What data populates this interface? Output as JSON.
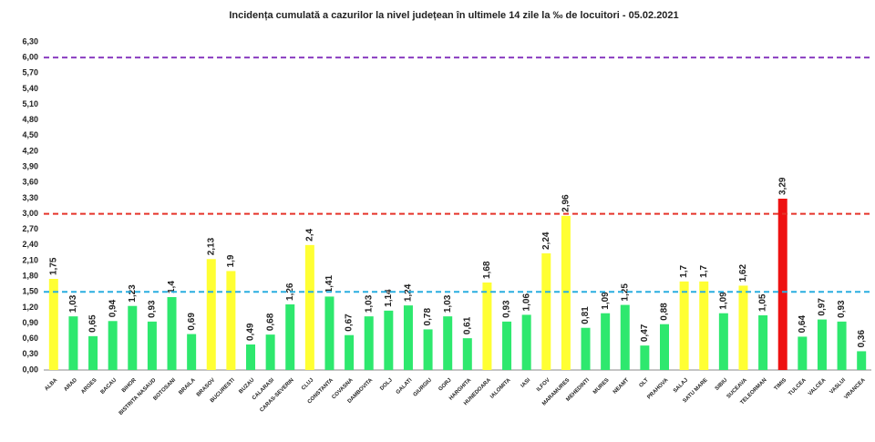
{
  "chart_data": {
    "type": "bar",
    "title": "Incidența cumulată a cazurilor la nivel județean în ultimele 14 zile   la ‰ de locuitori  - 05.02.2021",
    "categories": [
      "ALBA",
      "ARAD",
      "ARGES",
      "BACAU",
      "BIHOR",
      "BISTRITA NASAUD",
      "BOTOSANI",
      "BRAILA",
      "BRASOV",
      "BUCURESTI",
      "BUZAU",
      "CALARASI",
      "CARAS-SEVERIN",
      "CLUJ",
      "CONSTANTA",
      "COVASNA",
      "DAMBOVITA",
      "DOLJ",
      "GALATI",
      "GIURGIU",
      "GORJ",
      "HARGHITA",
      "HUNEDOARA",
      "IALOMITA",
      "IASI",
      "ILFOV",
      "MARAMURES",
      "MEHEDINTI",
      "MURES",
      "NEAMT",
      "OLT",
      "PRAHOVA",
      "SALAJ",
      "SATU MARE",
      "SIBIU",
      "SUCEAVA",
      "TELEORMAN",
      "TIMIS",
      "TULCEA",
      "VALCEA",
      "VASLUI",
      "VRANCEA"
    ],
    "values": [
      1.75,
      1.03,
      0.65,
      0.94,
      1.23,
      0.93,
      1.4,
      0.69,
      2.13,
      1.9,
      0.49,
      0.68,
      1.26,
      2.4,
      1.41,
      0.67,
      1.03,
      1.14,
      1.24,
      0.78,
      1.03,
      0.61,
      1.68,
      0.93,
      1.06,
      2.24,
      2.96,
      0.81,
      1.09,
      1.25,
      0.47,
      0.88,
      1.7,
      1.7,
      1.09,
      1.62,
      1.05,
      3.29,
      0.64,
      0.97,
      0.93,
      0.36
    ],
    "value_labels": [
      "1,75",
      "1,03",
      "0,65",
      "0,94",
      "1,23",
      "0,93",
      "1,4",
      "0,69",
      "2,13",
      "1,9",
      "0,49",
      "0,68",
      "1,26",
      "2,4",
      "1,41",
      "0,67",
      "1,03",
      "1,14",
      "1,24",
      "0,78",
      "1,03",
      "0,61",
      "1,68",
      "0,93",
      "1,06",
      "2,24",
      "2,96",
      "0,81",
      "1,09",
      "1,25",
      "0,47",
      "0,88",
      "1,7",
      "1,7",
      "1,09",
      "1,62",
      "1,05",
      "3,29",
      "0,64",
      "0,97",
      "0,93",
      "0,36"
    ],
    "colors": [
      "#ffff33",
      "#2ee86e",
      "#2ee86e",
      "#2ee86e",
      "#2ee86e",
      "#2ee86e",
      "#2ee86e",
      "#2ee86e",
      "#ffff33",
      "#ffff33",
      "#2ee86e",
      "#2ee86e",
      "#2ee86e",
      "#ffff33",
      "#2ee86e",
      "#2ee86e",
      "#2ee86e",
      "#2ee86e",
      "#2ee86e",
      "#2ee86e",
      "#2ee86e",
      "#2ee86e",
      "#ffff33",
      "#2ee86e",
      "#2ee86e",
      "#ffff33",
      "#ffff33",
      "#2ee86e",
      "#2ee86e",
      "#2ee86e",
      "#2ee86e",
      "#2ee86e",
      "#ffff33",
      "#ffff33",
      "#2ee86e",
      "#ffff33",
      "#2ee86e",
      "#ee1111",
      "#2ee86e",
      "#2ee86e",
      "#2ee86e",
      "#2ee86e"
    ],
    "ylim": [
      0,
      6.3
    ],
    "yticks": [
      {
        "value": 0,
        "label": "0,00"
      },
      {
        "value": 0.3,
        "label": "0,30"
      },
      {
        "value": 0.6,
        "label": "0,60"
      },
      {
        "value": 0.9,
        "label": "0,90"
      },
      {
        "value": 1.2,
        "label": "1,20"
      },
      {
        "value": 1.5,
        "label": "1,50"
      },
      {
        "value": 1.8,
        "label": "1,80"
      },
      {
        "value": 2.1,
        "label": "2,10"
      },
      {
        "value": 2.4,
        "label": "2,40"
      },
      {
        "value": 2.7,
        "label": "2,70"
      },
      {
        "value": 3,
        "label": "3,00"
      },
      {
        "value": 3.3,
        "label": "3,30"
      },
      {
        "value": 3.6,
        "label": "3,60"
      },
      {
        "value": 3.9,
        "label": "3,90"
      },
      {
        "value": 4.2,
        "label": "4,20"
      },
      {
        "value": 4.5,
        "label": "4,50"
      },
      {
        "value": 4.8,
        "label": "4,80"
      },
      {
        "value": 5.1,
        "label": "5,10"
      },
      {
        "value": 5.4,
        "label": "5,40"
      },
      {
        "value": 5.7,
        "label": "5,70"
      },
      {
        "value": 6,
        "label": "6,00"
      },
      {
        "value": 6.3,
        "label": "6,30"
      }
    ],
    "reference_lines": [
      {
        "value": 6,
        "color": "#8a3cc0"
      },
      {
        "value": 3,
        "color": "#e5342a"
      },
      {
        "value": 1.5,
        "color": "#2aaee0"
      }
    ],
    "grid": false
  }
}
